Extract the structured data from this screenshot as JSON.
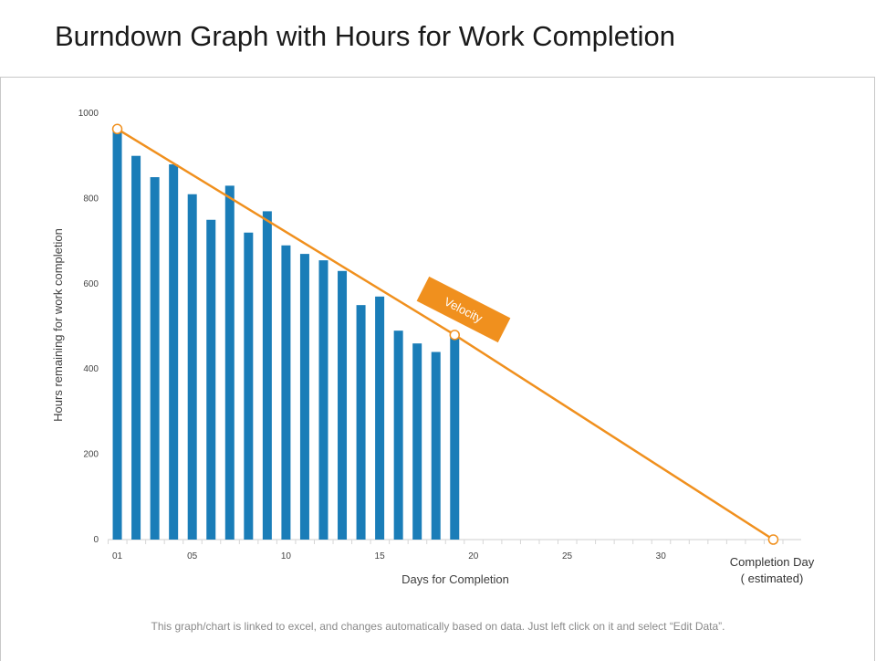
{
  "page": {
    "title": "Burndown Graph with Hours for Work Completion",
    "footnote": "This graph/chart is linked to excel, and changes automatically based on data. Just left click on it and select “Edit Data”."
  },
  "chart_data": {
    "type": "bar",
    "xlabel": "Days for Completion",
    "ylabel": "Hours remaining for work completion",
    "ylim": [
      0,
      1000
    ],
    "xlim": [
      0,
      37
    ],
    "y_ticks": [
      0,
      200,
      400,
      600,
      800,
      1000
    ],
    "x_ticks": [
      {
        "value": 1,
        "label": "01"
      },
      {
        "value": 5,
        "label": "05"
      },
      {
        "value": 10,
        "label": "10"
      },
      {
        "value": 15,
        "label": "15"
      },
      {
        "value": 20,
        "label": "20"
      },
      {
        "value": 25,
        "label": "25"
      },
      {
        "value": 30,
        "label": "30"
      }
    ],
    "bars": {
      "days": [
        1,
        2,
        3,
        4,
        5,
        6,
        7,
        8,
        9,
        10,
        11,
        12,
        13,
        14,
        15,
        16,
        17,
        18,
        19
      ],
      "values": [
        960,
        900,
        850,
        880,
        810,
        750,
        830,
        720,
        770,
        690,
        670,
        655,
        630,
        550,
        570,
        490,
        460,
        440,
        480
      ],
      "color": "#1a7db8"
    },
    "velocity_line": {
      "label": "Velocity",
      "color": "#f0901e",
      "points": [
        {
          "x": 1,
          "y": 963
        },
        {
          "x": 19,
          "y": 480
        },
        {
          "x": 36,
          "y": 0
        }
      ]
    },
    "completion": {
      "label_line1": "Completion Day",
      "label_line2": "( estimated)"
    },
    "grid": false,
    "legend": "none"
  }
}
